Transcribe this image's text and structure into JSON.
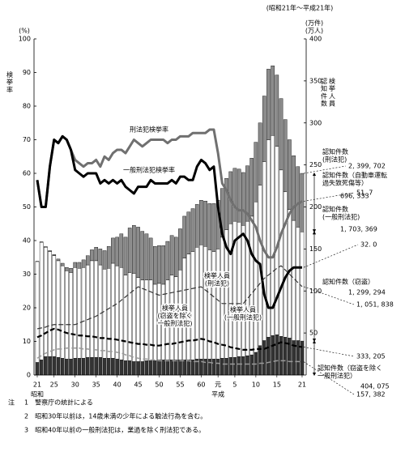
{
  "chart_data": {
    "type": "bar-line",
    "title": "(昭和21年～平成21年)",
    "y_title": "検挙率",
    "y_unit": "(%)",
    "y2_title": [
      "認知件数",
      "検挙人員"
    ],
    "y2_unit": "(万件)\n(万人)",
    "categories": [
      "21",
      null,
      null,
      null,
      "25",
      null,
      null,
      null,
      null,
      "30",
      null,
      null,
      null,
      null,
      "35",
      null,
      null,
      null,
      null,
      "40",
      null,
      null,
      null,
      null,
      "45",
      null,
      null,
      null,
      null,
      "50",
      null,
      null,
      null,
      null,
      "55",
      null,
      null,
      null,
      null,
      "60",
      null,
      null,
      null,
      "元",
      null,
      null,
      null,
      "5",
      null,
      null,
      null,
      null,
      "10",
      null,
      null,
      null,
      null,
      "15",
      null,
      null,
      null,
      null,
      null,
      "21"
    ],
    "eras": [
      {
        "label": "昭和",
        "start": 0
      },
      {
        "label": "平成",
        "start": 43
      }
    ],
    "ylim": [
      0,
      100
    ],
    "yticks": [
      0,
      10,
      20,
      30,
      40,
      50,
      60,
      70,
      80,
      90,
      100
    ],
    "y2lim": [
      0,
      400
    ],
    "y2ticks": [
      50,
      100,
      150,
      200,
      250,
      300,
      350,
      400
    ],
    "series": [
      {
        "name": "認知件数（窃盗を除く\n一般刑法犯）",
        "kind": "bar",
        "axis": "y2",
        "color": "#333333",
        "end_label": "404, 075",
        "values": [
          15,
          18,
          22,
          22,
          22,
          21,
          20,
          19,
          19,
          20,
          20,
          20,
          21,
          21,
          21,
          21,
          20,
          20,
          20,
          19,
          18,
          17,
          17,
          16,
          16,
          16,
          17,
          17,
          17,
          18,
          18,
          18,
          18,
          18,
          18,
          18,
          18,
          18,
          19,
          19,
          19,
          19,
          19,
          19,
          20,
          20,
          21,
          21,
          22,
          22,
          23,
          24,
          27,
          35,
          41,
          45,
          47,
          48,
          46,
          45,
          44,
          41,
          41,
          40.4075
        ]
      },
      {
        "name": "認知件数（窃盗）",
        "kind": "bar",
        "axis": "y2",
        "color": "#ffffff",
        "end_label": "1, 299, 294",
        "values": [
          120,
          140,
          130,
          125,
          120,
          115,
          110,
          105,
          103,
          108,
          107,
          108,
          110,
          115,
          115,
          110,
          106,
          107,
          113,
          111,
          110,
          102,
          105,
          105,
          100,
          97,
          96,
          96,
          91,
          91,
          90,
          95,
          101,
          99,
          107,
          121,
          126,
          129,
          133,
          136,
          134,
          130,
          128,
          131,
          144,
          153,
          159,
          162,
          160,
          156,
          160,
          165,
          179,
          191,
          213,
          235,
          238,
          224,
          198,
          173,
          153,
          143,
          135,
          129.9294
        ]
      },
      {
        "name": "認知件数（自動車運転\n過失致死傷等）",
        "kind": "bar",
        "axis": "y2",
        "color": "#8c8c8c",
        "end_label": "696, 333",
        "values": [
          0.3,
          0.5,
          0.8,
          1,
          1.3,
          2,
          3,
          4,
          5,
          6,
          7,
          9,
          11,
          13,
          16,
          19,
          22,
          26,
          30,
          34,
          40,
          45,
          53,
          57,
          60,
          58,
          55,
          50,
          45,
          45,
          46,
          46,
          47,
          47,
          49,
          50,
          50,
          51,
          51,
          53,
          54,
          55,
          57,
          58,
          58,
          61,
          62,
          63,
          63,
          63,
          66,
          69,
          71,
          74,
          78,
          84,
          83,
          85,
          85,
          86,
          83,
          77,
          72,
          69.6333
        ]
      },
      {
        "name": "刑法犯検挙率",
        "kind": "line",
        "axis": "y",
        "color": "#707070",
        "width": 3,
        "dash": false,
        "end_label": "51, 7",
        "values": [
          58,
          50,
          50,
          62,
          70,
          69,
          71,
          70,
          67,
          64,
          63,
          62,
          63,
          63,
          64,
          62,
          65,
          64,
          66,
          67,
          67,
          66,
          68,
          70,
          69,
          68,
          69,
          70,
          70,
          70,
          70,
          69,
          70,
          70,
          71,
          71,
          71,
          72,
          72,
          72,
          72,
          73,
          73,
          66,
          57,
          55,
          52,
          50,
          49,
          49,
          48,
          46,
          44,
          40,
          37,
          35,
          35,
          38,
          42,
          45,
          48,
          50,
          51,
          51.7
        ]
      },
      {
        "name": "一般刑法犯検挙率",
        "kind": "line",
        "axis": "y",
        "color": "#000000",
        "width": 3,
        "dash": false,
        "end_label": "32. 0",
        "values": [
          58,
          50,
          50,
          62,
          70,
          69,
          71,
          70,
          67,
          61,
          60,
          59,
          60,
          60,
          60,
          57,
          58,
          57,
          58,
          57,
          58,
          56,
          55,
          54,
          56,
          56,
          56,
          58,
          57,
          57,
          57,
          57,
          58,
          57,
          59,
          59,
          58,
          58,
          62,
          64,
          63,
          61,
          62,
          50,
          42,
          38,
          36,
          40,
          41,
          42,
          40,
          36,
          34,
          33,
          24,
          20,
          20,
          23,
          26,
          29,
          31,
          32,
          32,
          32.0
        ]
      },
      {
        "name": "検挙人員\n(刑法犯)",
        "kind": "line",
        "axis": "y2",
        "color": "#333333",
        "width": 1.2,
        "dash": true,
        "end_label": "1, 051, 838",
        "values": [
          55,
          56,
          57,
          59,
          60,
          60,
          60,
          60,
          60,
          60,
          62,
          64,
          66,
          68,
          70,
          73,
          76,
          79,
          82,
          85,
          89,
          93,
          97,
          101,
          105,
          103,
          101,
          99,
          97,
          95,
          96,
          97,
          98,
          99,
          100,
          101,
          102,
          103,
          104,
          105,
          101,
          97,
          93,
          89,
          85,
          85,
          85,
          85,
          85,
          85,
          91,
          97,
          103,
          109,
          115,
          119,
          123,
          127,
          130,
          125,
          120,
          115,
          110,
          105.1838
        ]
      },
      {
        "name": "検挙人員\n(一般刑法犯)",
        "kind": "line",
        "axis": "y2",
        "color": "#000000",
        "width": 2.2,
        "dash": true,
        "end_label": "333, 205",
        "values": [
          45,
          47,
          50,
          53,
          55,
          54,
          52,
          50,
          49,
          48,
          47,
          47,
          46,
          46,
          45,
          44,
          44,
          43,
          43,
          42,
          41,
          40,
          39,
          38,
          37,
          37,
          36,
          36,
          35,
          35,
          36,
          37,
          37,
          38,
          39,
          40,
          41,
          41,
          42,
          43,
          42,
          40,
          39,
          37,
          36,
          35,
          33,
          32,
          31,
          30,
          30,
          30,
          31,
          31,
          31,
          33,
          35,
          37,
          39,
          38,
          37,
          35,
          34,
          33.3205
        ]
      },
      {
        "name": "検挙人員\n(窃盗を除く\n一般刑法犯)",
        "kind": "line",
        "axis": "y2",
        "color": "#9a9a9a",
        "width": 1.5,
        "dash": true,
        "end_label": "157, 382",
        "values": [
          20,
          23,
          26,
          28,
          30,
          31,
          31,
          32,
          32,
          32,
          32,
          31,
          31,
          30,
          30,
          29,
          29,
          28,
          28,
          27,
          26,
          24,
          23,
          21,
          20,
          19,
          19,
          18,
          18,
          17,
          17,
          17,
          17,
          17,
          17,
          17,
          17,
          16,
          16,
          16,
          15,
          15,
          14,
          14,
          13,
          13,
          13,
          13,
          13,
          13,
          13,
          13,
          13,
          14,
          14,
          15,
          16,
          17,
          17,
          17,
          16,
          16,
          16,
          15.7382
        ]
      }
    ],
    "annotations": [
      {
        "text": "認知件数\n(刑法犯)",
        "value_text": "2, 399, 702"
      },
      {
        "text": "認知件数\n(一般刑法犯)",
        "value_text": "1, 703, 369"
      }
    ],
    "notes_head": "注",
    "notes": [
      "1　警察庁の統計による",
      "2　昭和30年以前は，14歳未満の少年による触法行為を含む。",
      "3　昭和40年以前の一般刑法犯は，業過を除く刑法犯である。"
    ]
  }
}
